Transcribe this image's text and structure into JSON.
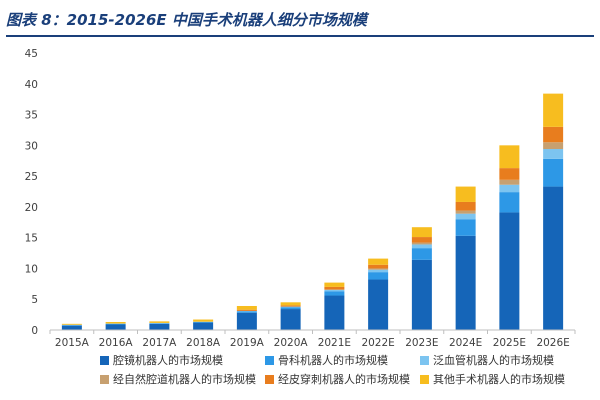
{
  "figure_title": "图表 8：2015-2026E 中国手术机器人细分市场规模",
  "colors": [
    "#1565b8",
    "#2d98e6",
    "#7cc4f0",
    "#c7a070",
    "#e87d1e",
    "#f7bd1f"
  ],
  "chart_data": {
    "type": "bar",
    "stacked": true,
    "title": "",
    "xlabel": "",
    "ylabel": "",
    "ylim": [
      0,
      45
    ],
    "yticks": [
      0,
      5,
      10,
      15,
      20,
      25,
      30,
      35,
      40,
      45
    ],
    "grid": false,
    "legend_position": "bottom",
    "categories": [
      "2015A",
      "2016A",
      "2017A",
      "2018A",
      "2019A",
      "2020A",
      "2021E",
      "2022E",
      "2023E",
      "2024E",
      "2025E",
      "2026E"
    ],
    "series": [
      {
        "name": "腔镜机器人的市场规模",
        "values": [
          0.7,
          0.9,
          1.0,
          1.2,
          2.8,
          3.4,
          5.6,
          8.2,
          11.4,
          15.3,
          19.1,
          23.3
        ]
      },
      {
        "name": "骨科机器人的市场规模",
        "values": [
          0.1,
          0.1,
          0.1,
          0.1,
          0.2,
          0.3,
          0.7,
          1.2,
          1.9,
          2.7,
          3.3,
          4.5
        ]
      },
      {
        "name": "泛血管机器人的市场规模",
        "values": [
          0.05,
          0.05,
          0.05,
          0.05,
          0.1,
          0.1,
          0.2,
          0.4,
          0.6,
          0.9,
          1.2,
          1.6
        ]
      },
      {
        "name": "经自然腔道机器人的市场规模",
        "values": [
          0.0,
          0.0,
          0.0,
          0.0,
          0.0,
          0.0,
          0.1,
          0.2,
          0.3,
          0.5,
          0.8,
          1.1
        ]
      },
      {
        "name": "经皮穿刺机器人的市场规模",
        "values": [
          0.0,
          0.0,
          0.0,
          0.0,
          0.2,
          0.2,
          0.4,
          0.6,
          0.9,
          1.4,
          1.9,
          2.5
        ]
      },
      {
        "name": "其他手术机器人的市场规模",
        "values": [
          0.15,
          0.25,
          0.25,
          0.35,
          0.6,
          0.5,
          0.7,
          1.0,
          1.6,
          2.5,
          3.7,
          5.4
        ]
      }
    ]
  }
}
